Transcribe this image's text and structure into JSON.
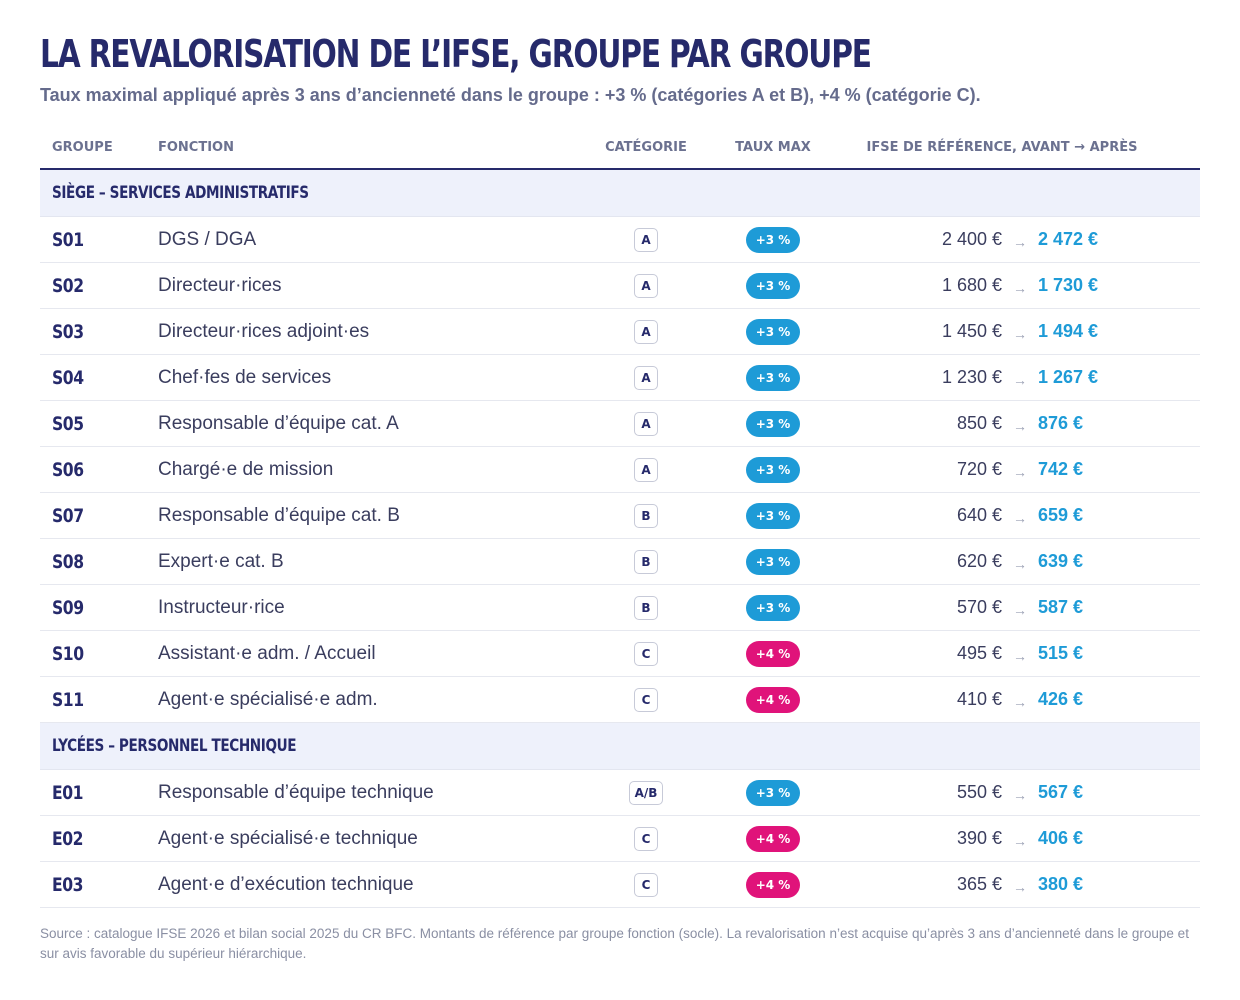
{
  "title": "LA REVALORISATION DE L’IFSE, GROUPE PAR GROUPE",
  "subtitle": "Taux maximal appliqué après 3 ans d’ancienneté dans le groupe : +3 % (catégories A et B), +4 % (catégorie C).",
  "columns": {
    "group": "GROUPE",
    "function": "FONCTION",
    "category": "CATÉGORIE",
    "rate": "TAUX MAX",
    "amount": "IFSE DE RÉFÉRENCE, AVANT → APRÈS"
  },
  "arrow_glyph": "→",
  "colors": {
    "rate_3": "#1e9bd7",
    "rate_4": "#e0137a",
    "after_amount": "#1e9bd7",
    "title": "#262a6b",
    "section_bg": "#eef1fb"
  },
  "sections": [
    {
      "label": "SIÈGE – SERVICES ADMINISTRATIFS",
      "rows": [
        {
          "code": "S01",
          "function": "DGS / DGA",
          "category": "A",
          "rate": "+3 %",
          "before": "2 400 €",
          "after": "2 472 €"
        },
        {
          "code": "S02",
          "function": "Directeur·rices",
          "category": "A",
          "rate": "+3 %",
          "before": "1 680 €",
          "after": "1 730 €"
        },
        {
          "code": "S03",
          "function": "Directeur·rices adjoint·es",
          "category": "A",
          "rate": "+3 %",
          "before": "1 450 €",
          "after": "1 494 €"
        },
        {
          "code": "S04",
          "function": "Chef·fes de services",
          "category": "A",
          "rate": "+3 %",
          "before": "1 230 €",
          "after": "1 267 €"
        },
        {
          "code": "S05",
          "function": "Responsable d’équipe cat. A",
          "category": "A",
          "rate": "+3 %",
          "before": "850 €",
          "after": "876 €"
        },
        {
          "code": "S06",
          "function": "Chargé·e de mission",
          "category": "A",
          "rate": "+3 %",
          "before": "720 €",
          "after": "742 €"
        },
        {
          "code": "S07",
          "function": "Responsable d’équipe cat. B",
          "category": "B",
          "rate": "+3 %",
          "before": "640 €",
          "after": "659 €"
        },
        {
          "code": "S08",
          "function": "Expert·e cat. B",
          "category": "B",
          "rate": "+3 %",
          "before": "620 €",
          "after": "639 €"
        },
        {
          "code": "S09",
          "function": "Instructeur·rice",
          "category": "B",
          "rate": "+3 %",
          "before": "570 €",
          "after": "587 €"
        },
        {
          "code": "S10",
          "function": "Assistant·e adm. / Accueil",
          "category": "C",
          "rate": "+4 %",
          "before": "495 €",
          "after": "515 €"
        },
        {
          "code": "S11",
          "function": "Agent·e spécialisé·e adm.",
          "category": "C",
          "rate": "+4 %",
          "before": "410 €",
          "after": "426 €"
        }
      ]
    },
    {
      "label": "LYCÉES – PERSONNEL TECHNIQUE",
      "rows": [
        {
          "code": "E01",
          "function": "Responsable d’équipe technique",
          "category": "A/B",
          "rate": "+3 %",
          "before": "550 €",
          "after": "567 €"
        },
        {
          "code": "E02",
          "function": "Agent·e spécialisé·e technique",
          "category": "C",
          "rate": "+4 %",
          "before": "390 €",
          "after": "406 €"
        },
        {
          "code": "E03",
          "function": "Agent·e d’exécution technique",
          "category": "C",
          "rate": "+4 %",
          "before": "365 €",
          "after": "380 €"
        }
      ]
    }
  ],
  "source": "Source : catalogue IFSE 2026 et bilan social 2025 du CR BFC. Montants de référence par groupe fonction (socle). La revalorisation n’est acquise qu’après 3 ans d’ancienneté dans le groupe et sur avis favorable du supérieur hiérarchique."
}
